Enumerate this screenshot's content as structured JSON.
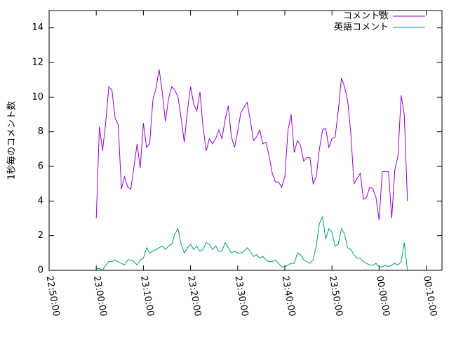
{
  "chart_data": {
    "type": "line",
    "y_label": "1秒毎のコメント数",
    "x": [
      600,
      640,
      680,
      720,
      760,
      800,
      840,
      880,
      920,
      960,
      1000,
      1040,
      1080,
      1120,
      1160,
      1200,
      1240,
      1280,
      1320,
      1360,
      1400,
      1440,
      1480,
      1520,
      1560,
      1600,
      1640,
      1680,
      1720,
      1760,
      1800,
      1840,
      1880,
      1920,
      1960,
      2000,
      2040,
      2080,
      2120,
      2160,
      2200,
      2240,
      2280,
      2320,
      2360,
      2400,
      2440,
      2480,
      2520,
      2560,
      2600,
      2640,
      2680,
      2720,
      2760,
      2800,
      2840,
      2880,
      2920,
      2960,
      3000,
      3040,
      3080,
      3120,
      3160,
      3200,
      3240,
      3280,
      3320,
      3360,
      3400,
      3440,
      3480,
      3520,
      3560,
      3600,
      3640,
      3680,
      3720,
      3760,
      3800,
      3840,
      3880,
      3920,
      3960,
      4000,
      4040,
      4080,
      4120,
      4160,
      4200,
      4240,
      4280,
      4320,
      4360,
      4400,
      4440,
      4480,
      4520,
      4560
    ],
    "series": [
      {
        "name": "コメント数",
        "color": "#9400d3",
        "values": [
          3.0,
          8.3,
          6.9,
          8.5,
          10.6,
          10.4,
          8.8,
          8.4,
          4.7,
          5.4,
          4.8,
          4.7,
          6.0,
          7.3,
          5.9,
          8.5,
          7.1,
          7.3,
          9.8,
          10.5,
          11.6,
          10.3,
          8.6,
          9.9,
          10.6,
          10.4,
          10.0,
          8.8,
          7.4,
          9.2,
          10.6,
          9.6,
          9.2,
          10.3,
          8.2,
          6.9,
          7.6,
          7.3,
          7.6,
          8.1,
          7.6,
          8.7,
          9.5,
          7.7,
          7.1,
          8.0,
          9.1,
          9.4,
          9.7,
          8.7,
          7.5,
          7.7,
          8.1,
          7.3,
          7.4,
          6.6,
          5.6,
          5.1,
          5.1,
          4.8,
          5.4,
          8.1,
          9.0,
          6.8,
          7.5,
          7.2,
          6.3,
          6.5,
          6.5,
          5.0,
          5.4,
          7.0,
          8.1,
          8.2,
          7.1,
          7.6,
          7.7,
          9.2,
          11.1,
          10.6,
          9.8,
          7.9,
          5.0,
          5.3,
          5.6,
          4.1,
          4.2,
          4.8,
          4.7,
          4.2,
          2.9,
          5.7,
          5.7,
          5.7,
          3.0,
          5.8,
          6.6,
          10.1,
          9.0,
          4.0
        ]
      },
      {
        "name": "英語コメント",
        "color": "#009e73",
        "values": [
          0.1,
          0.1,
          0.0,
          0.3,
          0.5,
          0.5,
          0.6,
          0.5,
          0.4,
          0.3,
          0.6,
          0.6,
          0.5,
          0.3,
          0.6,
          0.7,
          1.3,
          1.0,
          1.1,
          1.2,
          1.3,
          1.4,
          1.2,
          1.4,
          1.5,
          2.1,
          2.4,
          1.5,
          1.0,
          1.3,
          1.5,
          1.2,
          1.4,
          1.1,
          1.2,
          1.6,
          1.5,
          1.2,
          1.4,
          1.1,
          1.1,
          1.6,
          1.3,
          1.0,
          1.1,
          1.0,
          1.0,
          1.1,
          1.3,
          1.1,
          0.8,
          0.9,
          0.7,
          0.8,
          0.6,
          0.5,
          0.5,
          0.6,
          0.4,
          0.2,
          0.2,
          0.3,
          0.4,
          0.4,
          1.0,
          0.9,
          0.6,
          0.5,
          0.4,
          0.6,
          1.4,
          2.7,
          3.1,
          1.8,
          2.4,
          2.2,
          1.4,
          1.5,
          2.4,
          2.1,
          1.3,
          1.2,
          0.9,
          0.7,
          0.7,
          0.5,
          0.4,
          0.3,
          0.3,
          0.4,
          0.2,
          0.2,
          0.3,
          0.2,
          0.3,
          0.4,
          0.3,
          0.5,
          1.6,
          0.0
        ]
      }
    ],
    "xlim": [
      0,
      5000
    ],
    "xticks": [
      {
        "value": 0,
        "label": "22:50:00"
      },
      {
        "value": 600,
        "label": "23:00:00"
      },
      {
        "value": 1200,
        "label": "23:10:00"
      },
      {
        "value": 1800,
        "label": "23:20:00"
      },
      {
        "value": 2400,
        "label": "23:30:00"
      },
      {
        "value": 3000,
        "label": "23:40:00"
      },
      {
        "value": 3600,
        "label": "23:50:00"
      },
      {
        "value": 4200,
        "label": "00:00:00"
      },
      {
        "value": 4800,
        "label": "00:10:00"
      }
    ],
    "ylim": [
      0,
      15
    ],
    "yticks": [
      0,
      2,
      4,
      6,
      8,
      10,
      12,
      14
    ],
    "legend": "top-right"
  }
}
